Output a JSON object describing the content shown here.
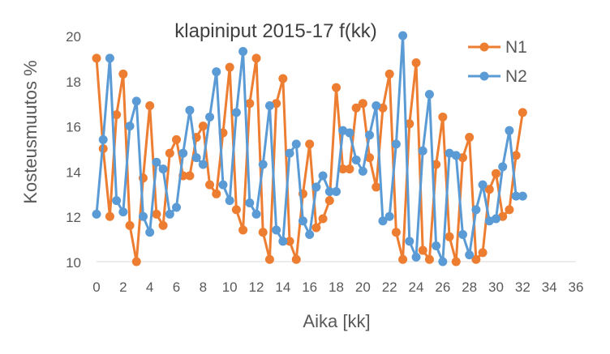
{
  "chart_data": {
    "type": "line",
    "title": "klapiniput 2015-17  f(kk)",
    "xlabel": "Aika [kk]",
    "ylabel": "Kosteusmuutos %",
    "xlim": [
      0,
      36
    ],
    "ylim": [
      10,
      20
    ],
    "x_ticks": [
      "0",
      "2",
      "4",
      "6",
      "8",
      "10",
      "12",
      "14",
      "16",
      "18",
      "20",
      "22",
      "24",
      "26",
      "28",
      "30",
      "32",
      "34",
      "36"
    ],
    "y_ticks": [
      "10",
      "12",
      "14",
      "16",
      "18",
      "20"
    ],
    "grid": false,
    "legend": "top-right",
    "series": [
      {
        "name": "N1",
        "color": "#ED7D31",
        "points": [
          [
            0,
            19.0
          ],
          [
            0.5,
            15.0
          ],
          [
            1,
            12.0
          ],
          [
            1.5,
            16.5
          ],
          [
            2,
            18.3
          ],
          [
            2.5,
            11.6
          ],
          [
            3,
            10.0
          ],
          [
            3.5,
            13.7
          ],
          [
            4,
            16.9
          ],
          [
            4.5,
            12.1
          ],
          [
            5,
            11.6
          ],
          [
            5.5,
            14.8
          ],
          [
            6,
            15.4
          ],
          [
            6.5,
            13.8
          ],
          [
            7,
            13.8
          ],
          [
            7.5,
            15.5
          ],
          [
            8,
            16.0
          ],
          [
            8.5,
            13.4
          ],
          [
            9,
            13.0
          ],
          [
            9.5,
            15.7
          ],
          [
            10,
            18.6
          ],
          [
            10.5,
            12.3
          ],
          [
            11,
            11.4
          ],
          [
            11.5,
            17.0
          ],
          [
            12,
            19.0
          ],
          [
            12.5,
            11.3
          ],
          [
            13,
            10.1
          ],
          [
            13.5,
            17.0
          ],
          [
            14,
            18.1
          ],
          [
            14.5,
            10.9
          ],
          [
            15,
            10.1
          ],
          [
            15.5,
            13.0
          ],
          [
            16,
            15.2
          ],
          [
            16.5,
            11.5
          ],
          [
            17,
            11.9
          ],
          [
            17.5,
            12.7
          ],
          [
            18,
            17.7
          ],
          [
            18.5,
            14.1
          ],
          [
            19,
            14.1
          ],
          [
            19.5,
            16.8
          ],
          [
            20,
            17.0
          ],
          [
            20.5,
            14.6
          ],
          [
            21,
            13.3
          ],
          [
            21.5,
            16.8
          ],
          [
            22,
            18.3
          ],
          [
            22.5,
            11.3
          ],
          [
            23,
            10.1
          ],
          [
            23.5,
            16.1
          ],
          [
            24,
            18.8
          ],
          [
            24.5,
            10.5
          ],
          [
            25,
            10.1
          ],
          [
            25.5,
            14.3
          ],
          [
            26,
            16.4
          ],
          [
            26.5,
            11.1
          ],
          [
            27,
            10.0
          ],
          [
            27.5,
            14.6
          ],
          [
            28,
            15.5
          ],
          [
            28.5,
            10.1
          ],
          [
            29,
            10.4
          ],
          [
            29.5,
            13.2
          ],
          [
            30,
            13.9
          ],
          [
            30.5,
            12.0
          ],
          [
            31,
            12.3
          ],
          [
            31.5,
            14.7
          ],
          [
            32,
            16.6
          ]
        ]
      },
      {
        "name": "N2",
        "color": "#5B9BD5",
        "points": [
          [
            0,
            12.1
          ],
          [
            0.5,
            15.4
          ],
          [
            1,
            19.0
          ],
          [
            1.5,
            12.7
          ],
          [
            2,
            12.2
          ],
          [
            2.5,
            16.0
          ],
          [
            3,
            17.1
          ],
          [
            3.5,
            12.0
          ],
          [
            4,
            11.3
          ],
          [
            4.5,
            14.4
          ],
          [
            5,
            14.1
          ],
          [
            5.5,
            12.1
          ],
          [
            6,
            12.4
          ],
          [
            6.5,
            14.8
          ],
          [
            7,
            16.7
          ],
          [
            7.5,
            14.6
          ],
          [
            8,
            14.3
          ],
          [
            8.5,
            16.4
          ],
          [
            9,
            18.4
          ],
          [
            9.5,
            13.4
          ],
          [
            10,
            12.7
          ],
          [
            10.5,
            16.6
          ],
          [
            11,
            19.3
          ],
          [
            11.5,
            12.6
          ],
          [
            12,
            12.1
          ],
          [
            12.5,
            14.3
          ],
          [
            13,
            16.9
          ],
          [
            13.5,
            11.4
          ],
          [
            14,
            10.9
          ],
          [
            14.5,
            14.8
          ],
          [
            15,
            15.2
          ],
          [
            15.5,
            11.8
          ],
          [
            16,
            11.2
          ],
          [
            16.5,
            13.3
          ],
          [
            17,
            13.8
          ],
          [
            17.5,
            13.1
          ],
          [
            18,
            13.1
          ],
          [
            18.5,
            15.8
          ],
          [
            19,
            15.7
          ],
          [
            19.5,
            14.5
          ],
          [
            20,
            14.0
          ],
          [
            20.5,
            15.6
          ],
          [
            21,
            16.9
          ],
          [
            21.5,
            11.8
          ],
          [
            22,
            12.0
          ],
          [
            22.5,
            15.2
          ],
          [
            23,
            20.0
          ],
          [
            23.5,
            10.9
          ],
          [
            24,
            10.2
          ],
          [
            24.5,
            14.9
          ],
          [
            25,
            17.4
          ],
          [
            25.5,
            10.7
          ],
          [
            26,
            10.0
          ],
          [
            26.5,
            14.8
          ],
          [
            27,
            14.7
          ],
          [
            27.5,
            11.2
          ],
          [
            28,
            10.3
          ],
          [
            28.5,
            12.3
          ],
          [
            29,
            13.4
          ],
          [
            29.5,
            11.8
          ],
          [
            30,
            11.9
          ],
          [
            30.5,
            14.2
          ],
          [
            31,
            15.8
          ],
          [
            31.5,
            12.9
          ],
          [
            32,
            12.9
          ]
        ]
      }
    ]
  }
}
